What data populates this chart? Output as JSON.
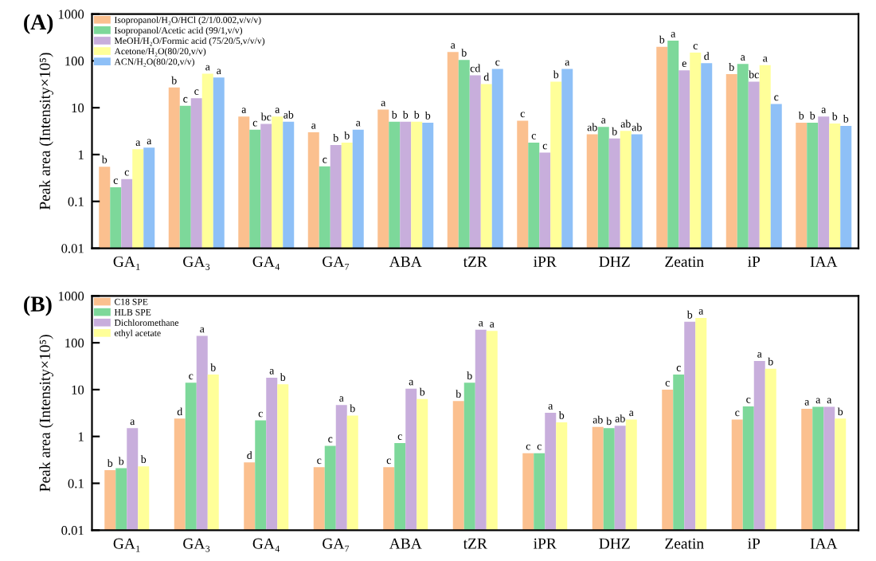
{
  "chart_data": [
    {
      "type": "bar",
      "title": "(A)",
      "ylabel": "Peak area (Intensity×10⁵)",
      "log": true,
      "ylim": [
        0.01,
        1000
      ],
      "yticks": [
        0.01,
        0.1,
        1,
        10,
        100,
        1000
      ],
      "legend": "top left",
      "grid": false,
      "categories": [
        "GA₁",
        "GA₃",
        "GA₄",
        "GA₇",
        "ABA",
        "tZR",
        "iPR",
        "DHZ",
        "Zeatin",
        "iP",
        "IAA"
      ],
      "series": [
        {
          "name": "Isopropanol/H₂O/HCl (2/1/0.002,v/v/v)",
          "color": "#fbc08f",
          "values": [
            0.55,
            27,
            6.5,
            3.0,
            9.1,
            155,
            5.3,
            2.7,
            200,
            52,
            4.8
          ],
          "value_labels": [
            "b",
            "b",
            "a",
            "a",
            "a",
            "a",
            "c",
            "ab",
            "b",
            "b",
            "b"
          ]
        },
        {
          "name": "Isopropanol/Acetic acid (99/1,v/v)",
          "color": "#7dd89a",
          "values": [
            0.2,
            11,
            3.4,
            0.56,
            5,
            105,
            1.8,
            3.9,
            270,
            86,
            4.8
          ],
          "value_labels": [
            "c",
            "c",
            "c",
            "c",
            "b",
            "b",
            "c",
            "a",
            "a",
            "a",
            "b"
          ]
        },
        {
          "name": "MeOH/H₂O/Formic acid (75/20/5,v/v/v)",
          "color": "#c8aedc",
          "values": [
            0.3,
            16,
            4.5,
            1.6,
            5,
            49,
            1.1,
            2.2,
            63,
            36,
            6.5
          ],
          "value_labels": [
            "c",
            "c",
            "bc",
            "b",
            "b",
            "cd",
            "c",
            "b",
            "e",
            "bc",
            "a"
          ]
        },
        {
          "name": "Acetone/H₂O(80/20,v/v)",
          "color": "#ffff99",
          "values": [
            1.3,
            53,
            6.5,
            1.8,
            5,
            32,
            36,
            3.2,
            150,
            81,
            4.6
          ],
          "value_labels": [
            "a",
            "a",
            "a",
            "b",
            "b",
            "d",
            "b",
            "ab",
            "c",
            "a",
            "b"
          ]
        },
        {
          "name": "ACN/H₂O(80/20,v/v)",
          "color": "#8ec0f7",
          "values": [
            1.4,
            44,
            5,
            3.4,
            4.8,
            67,
            67,
            2.7,
            89,
            12,
            4.1
          ],
          "value_labels": [
            "a",
            "a",
            "ab",
            "a",
            "b",
            "c",
            "a",
            "ab",
            "d",
            "c",
            "b"
          ]
        }
      ]
    },
    {
      "type": "bar",
      "title": "(B)",
      "ylabel": "Peak area (Intensity×10⁵)",
      "log": true,
      "ylim": [
        0.01,
        1000
      ],
      "yticks": [
        0.01,
        0.1,
        1,
        10,
        100,
        1000
      ],
      "legend": "top left",
      "grid": false,
      "categories": [
        "GA₁",
        "GA₃",
        "GA₄",
        "GA₇",
        "ABA",
        "tZR",
        "iPR",
        "DHZ",
        "Zeatin",
        "iP",
        "IAA"
      ],
      "series": [
        {
          "name": "C18 SPE",
          "color": "#fbc08f",
          "values": [
            0.19,
            2.4,
            0.28,
            0.22,
            0.22,
            5.7,
            0.44,
            1.6,
            10,
            2.3,
            3.9
          ],
          "value_labels": [
            "b",
            "d",
            "d",
            "c",
            "c",
            "b",
            "c",
            "ab",
            "c",
            "c",
            "a"
          ]
        },
        {
          "name": "HLB SPE",
          "color": "#7dd89a",
          "values": [
            0.21,
            14,
            2.2,
            0.63,
            0.72,
            14,
            0.44,
            1.5,
            21,
            4.4,
            4.3
          ],
          "value_labels": [
            "b",
            "c",
            "c",
            "c",
            "c",
            "b",
            "c",
            "b",
            "c",
            "c",
            "a"
          ]
        },
        {
          "name": "Dichloromethane",
          "color": "#c8aedc",
          "values": [
            1.5,
            140,
            18,
            4.7,
            10.5,
            190,
            3.2,
            1.7,
            280,
            41,
            4.3
          ],
          "value_labels": [
            "a",
            "a",
            "a",
            "a",
            "a",
            "a",
            "a",
            "ab",
            "b",
            "a",
            "a"
          ]
        },
        {
          "name": "ethyl acetate",
          "color": "#ffff99",
          "values": [
            0.23,
            21,
            13,
            2.8,
            6.3,
            180,
            2.0,
            2.3,
            340,
            28,
            2.4
          ],
          "value_labels": [
            "b",
            "b",
            "b",
            "b",
            "b",
            "a",
            "b",
            "a",
            "a",
            "b",
            "b"
          ]
        }
      ]
    }
  ]
}
